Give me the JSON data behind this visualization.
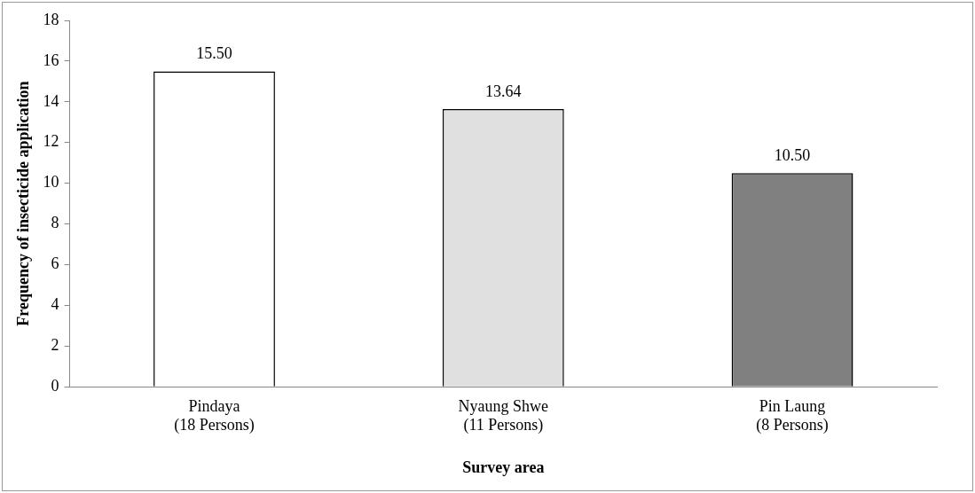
{
  "chart_data": {
    "type": "bar",
    "xlabel": "Survey area",
    "ylabel": "Frequency of insecticide application",
    "categories": [
      "Pindaya\n(18 Persons)",
      "Nyaung Shwe\n(11 Persons)",
      "Pin Laung\n(8 Persons)"
    ],
    "values": [
      15.5,
      13.64,
      10.5
    ],
    "colors": [
      "#ffffff",
      "#e0e0e0",
      "#808080"
    ],
    "value_labels": [
      "15.50",
      "13.64",
      "10.50"
    ],
    "ylim": [
      0,
      18
    ],
    "yticks": [
      0,
      2,
      4,
      6,
      8,
      10,
      12,
      14,
      16,
      18
    ],
    "grid": false,
    "legend": false
  }
}
